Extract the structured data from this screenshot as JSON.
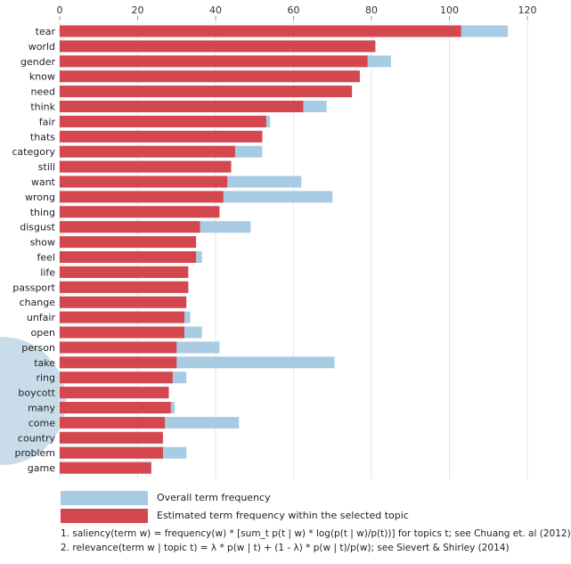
{
  "colors": {
    "overall": "#a8cbe4",
    "topic": "#d5474f",
    "grid": "#e6e6e6",
    "circle": "#c9dcea"
  },
  "legend": {
    "overall_label": "Overall term frequency",
    "topic_label": "Estimated term frequency within the selected topic"
  },
  "notes": {
    "saliency": "1. saliency(term w) = frequency(w) * [sum_t p(t | w) * log(p(t | w)/p(t))] for topics t; see Chuang et. al (2012)",
    "relevance": "2. relevance(term w | topic t) = λ * p(w | t) + (1 - λ) * p(w | t)/p(w); see Sievert & Shirley (2014)"
  },
  "chart_data": {
    "type": "bar",
    "orientation": "horizontal",
    "xlim": [
      0,
      120
    ],
    "xticks": [
      0,
      20,
      40,
      60,
      80,
      100,
      120
    ],
    "axis_position": "top",
    "grid": true,
    "categories": [
      "tear",
      "world",
      "gender",
      "know",
      "need",
      "think",
      "fair",
      "thats",
      "category",
      "still",
      "want",
      "wrong",
      "thing",
      "disgust",
      "show",
      "feel",
      "life",
      "passport",
      "change",
      "unfair",
      "open",
      "person",
      "take",
      "ring",
      "boycott",
      "many",
      "come",
      "country",
      "problem",
      "game"
    ],
    "series": [
      {
        "name": "Overall term frequency",
        "values": [
          115,
          81,
          85,
          77,
          75,
          68.5,
          54,
          52,
          52,
          44,
          62,
          70,
          41,
          49,
          35,
          36.5,
          33,
          33,
          32.5,
          33.5,
          36.5,
          41,
          70.5,
          32.5,
          28,
          29.5,
          46,
          26.5,
          32.5,
          23.5
        ]
      },
      {
        "name": "Estimated term frequency within the selected topic",
        "values": [
          103,
          81,
          79,
          77,
          75,
          62.5,
          53,
          52,
          45,
          44,
          43,
          42,
          41,
          36,
          35,
          35,
          33,
          33,
          32.5,
          32,
          32,
          30,
          30,
          29,
          28,
          28.5,
          27,
          26.5,
          26.5,
          23.5
        ]
      }
    ]
  }
}
